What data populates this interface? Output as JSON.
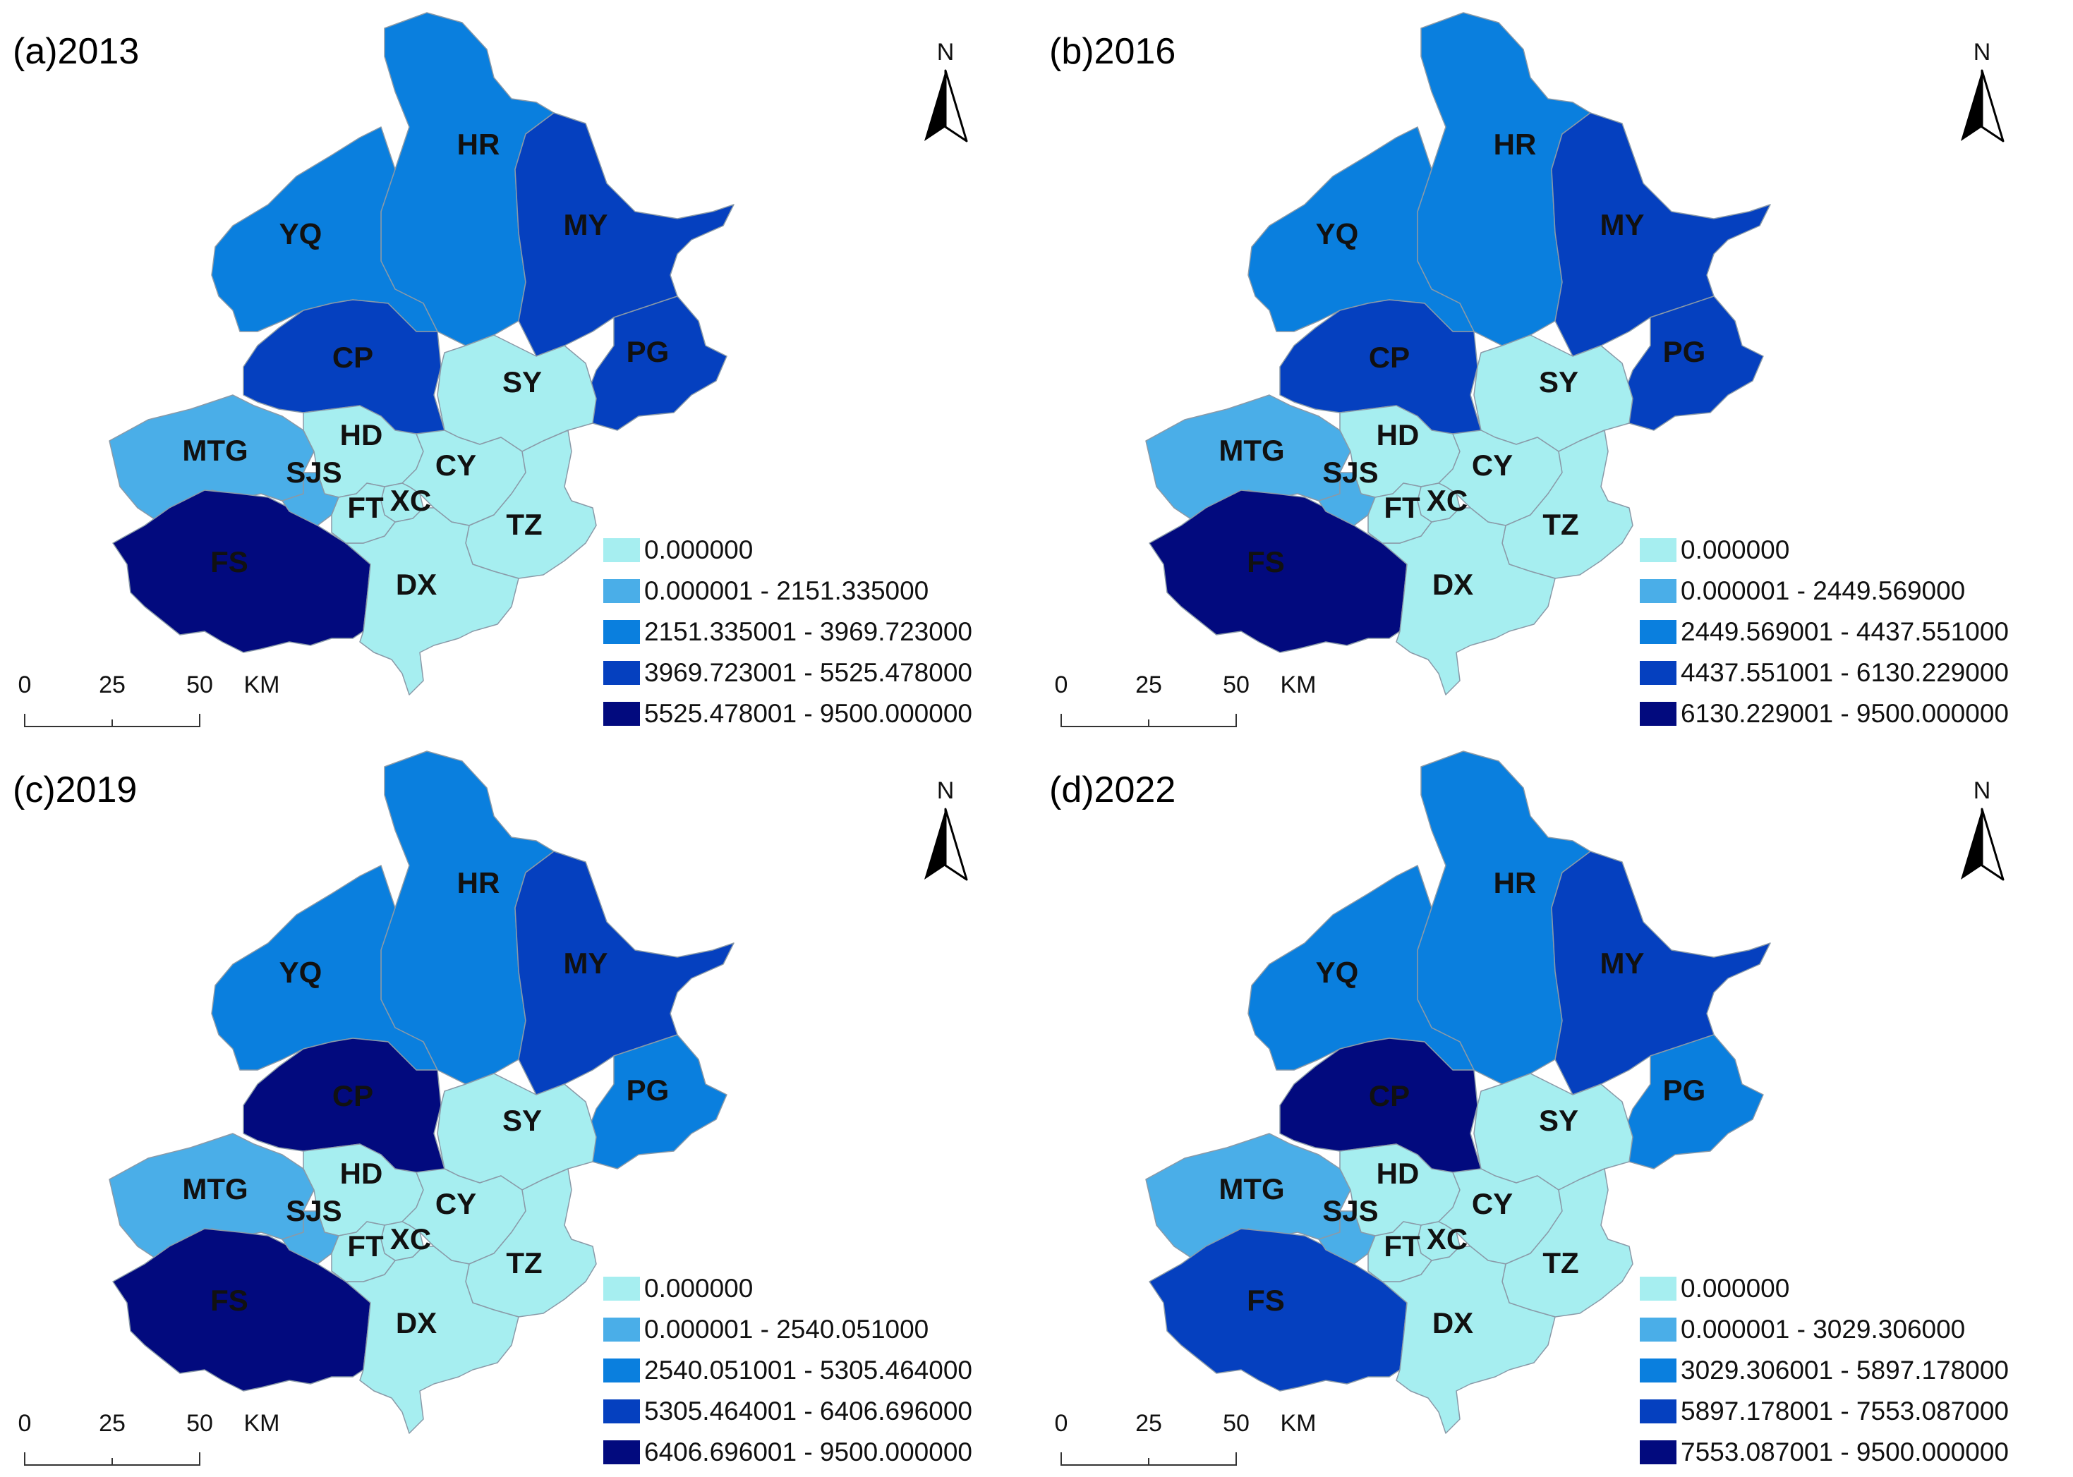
{
  "colors": {
    "class0": "#a6eef0",
    "class1": "#4aaee8",
    "class2": "#0a7fde",
    "class3": "#0540bf",
    "class4": "#020a7e",
    "border": "#8a9aa8"
  },
  "north_label": "N",
  "north_icon": "north-arrow-icon",
  "scale": {
    "ticks": [
      "0",
      "25",
      "50"
    ],
    "unit": "KM"
  },
  "district_labels": {
    "HR": "HR",
    "YQ": "YQ",
    "MY": "MY",
    "PG": "PG",
    "CP": "CP",
    "SY": "SY",
    "MTG": "MTG",
    "HD": "HD",
    "SJS": "SJS",
    "CY": "CY",
    "FT": "FT",
    "XC": "XC",
    "TZ": "TZ",
    "FS": "FS",
    "DX": "DX"
  },
  "panels": [
    {
      "title": "(a)2013",
      "legend": [
        "0.000000",
        "0.000001 - 2151.335000",
        "2151.335001 - 3969.723000",
        "3969.723001 - 5525.478000",
        "5525.478001 - 9500.000000"
      ],
      "classes": {
        "HR": 2,
        "YQ": 2,
        "MY": 3,
        "PG": 3,
        "CP": 3,
        "SY": 0,
        "MTG": 1,
        "HD": 0,
        "SJS": 1,
        "CY": 0,
        "FT": 0,
        "XC": 0,
        "TZ": 0,
        "FS": 4,
        "DX": 0
      }
    },
    {
      "title": "(b)2016",
      "legend": [
        "0.000000",
        "0.000001 - 2449.569000",
        "2449.569001 - 4437.551000",
        "4437.551001 - 6130.229000",
        "6130.229001 - 9500.000000"
      ],
      "classes": {
        "HR": 2,
        "YQ": 2,
        "MY": 3,
        "PG": 3,
        "CP": 3,
        "SY": 0,
        "MTG": 1,
        "HD": 0,
        "SJS": 1,
        "CY": 0,
        "FT": 0,
        "XC": 0,
        "TZ": 0,
        "FS": 4,
        "DX": 0
      }
    },
    {
      "title": "(c)2019",
      "legend": [
        "0.000000",
        "0.000001 - 2540.051000",
        "2540.051001 - 5305.464000",
        "5305.464001 - 6406.696000",
        "6406.696001 - 9500.000000"
      ],
      "classes": {
        "HR": 2,
        "YQ": 2,
        "MY": 3,
        "PG": 2,
        "CP": 4,
        "SY": 0,
        "MTG": 1,
        "HD": 0,
        "SJS": 1,
        "CY": 0,
        "FT": 0,
        "XC": 0,
        "TZ": 0,
        "FS": 4,
        "DX": 0
      }
    },
    {
      "title": "(d)2022",
      "legend": [
        "0.000000",
        "0.000001 - 3029.306000",
        "3029.306001 - 5897.178000",
        "5897.178001 - 7553.087000",
        "7553.087001 - 9500.000000"
      ],
      "classes": {
        "HR": 2,
        "YQ": 2,
        "MY": 3,
        "PG": 2,
        "CP": 4,
        "SY": 0,
        "MTG": 1,
        "HD": 0,
        "SJS": 1,
        "CY": 0,
        "FT": 0,
        "XC": 0,
        "TZ": 0,
        "FS": 3,
        "DX": 0
      }
    }
  ]
}
